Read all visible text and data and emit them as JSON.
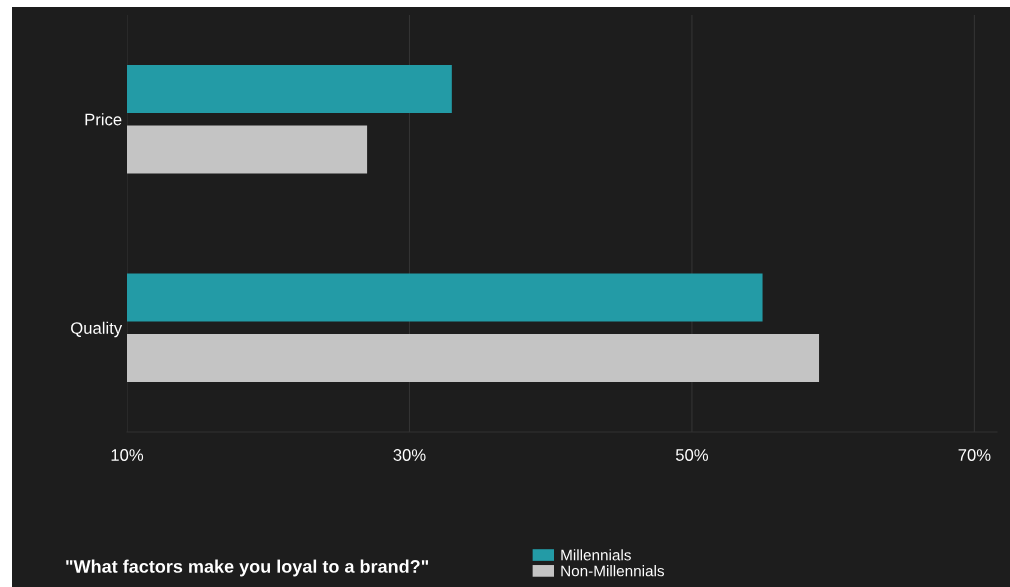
{
  "chart_data": {
    "type": "bar",
    "orientation": "horizontal",
    "title": "\"What factors make you loyal to a brand?\"",
    "categories": [
      "Price",
      "Quality"
    ],
    "series": [
      {
        "name": "Millennials",
        "color": "#239ba6",
        "values": [
          33,
          55
        ]
      },
      {
        "name": "Non-Millennials",
        "color": "#c4c4c4",
        "values": [
          27,
          59
        ]
      }
    ],
    "xlim": [
      10,
      71.6
    ],
    "xticks": [
      {
        "value": 10,
        "label": "10%"
      },
      {
        "value": 30,
        "label": "30%"
      },
      {
        "value": 50,
        "label": "50%"
      },
      {
        "value": 70,
        "label": "70%"
      }
    ],
    "grid": "x",
    "legend": "bottom"
  }
}
